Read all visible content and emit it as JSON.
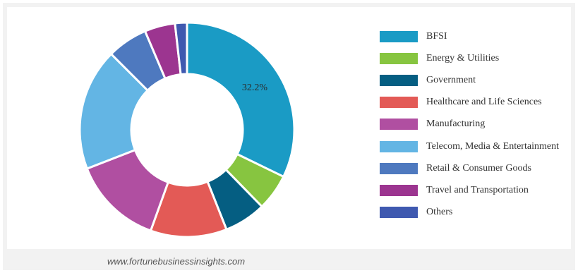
{
  "chart_data": {
    "type": "pie",
    "donut": true,
    "title": "",
    "categories": [
      "BFSI",
      "Energy & Utilities",
      "Government",
      "Healthcare and Life Sciences",
      "Manufacturing",
      "Telecom, Media & Entertainment",
      "Retail & Consumer Goods",
      "Travel and Transportation",
      "Others"
    ],
    "values": [
      32.2,
      5.5,
      6.3,
      11.5,
      13.6,
      18.4,
      6.1,
      4.6,
      1.8
    ],
    "colors": [
      "#1a9bc5",
      "#87c540",
      "#055e82",
      "#e35a56",
      "#b04fa1",
      "#63b5e4",
      "#4e79bf",
      "#9c3590",
      "#3f59b0"
    ],
    "data_labels": [
      "32.2%",
      "",
      "",
      "",
      "",
      "",
      "",
      "",
      ""
    ],
    "legend_position": "right"
  },
  "watermark": "www.fortunebusinessinsights.com"
}
